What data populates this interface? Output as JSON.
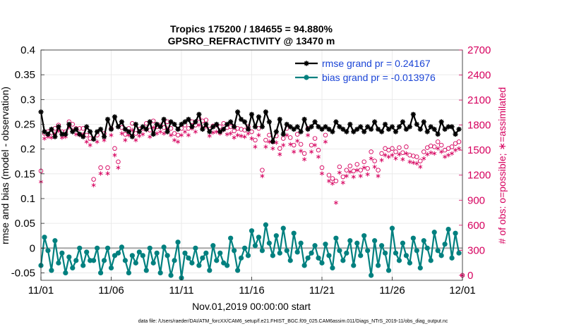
{
  "chart_data": {
    "type": "line",
    "title_line1": "Tropics 175200 / 184655 = 94.880%",
    "title_line2": "GPSRO_REFRACTIVITY @ 13470 m",
    "xlabel": "Nov.01,2019 00:00:00 start",
    "ylabel": "rmse and bias (model - observation)",
    "ylabel_right": "# of obs: o=possible; ∗=assimilated",
    "footnote": "data file: /Users/raeder/DAI/ATM_forcXX/CAM6_setup/f.e21.FHIST_BGC.f09_025.CAM6assim.011/Diags_NTrS_2019-11/obs_diag_output.nc",
    "x_tick_labels": [
      "11/01",
      "11/06",
      "11/11",
      "11/16",
      "11/21",
      "11/26",
      "12/01"
    ],
    "x_ticks": [
      0,
      5,
      10,
      15,
      20,
      25,
      30
    ],
    "xlim": [
      0,
      30
    ],
    "ylim": [
      -0.065,
      0.4
    ],
    "y_ticks": [
      -0.05,
      0,
      0.05,
      0.1,
      0.15,
      0.2,
      0.25,
      0.3,
      0.35,
      0.4
    ],
    "y_tick_labels": [
      "-0.05",
      "0",
      "0.05",
      "0.1",
      "0.15",
      "0.2",
      "0.25",
      "0.3",
      "0.35",
      "0.4"
    ],
    "ylim_right": [
      -60,
      2700
    ],
    "y_ticks_right": [
      0,
      300,
      600,
      900,
      1200,
      1500,
      1800,
      2100,
      2400,
      2700
    ],
    "y_tick_labels_right": [
      "0",
      "300",
      "600",
      "900",
      "1200",
      "1500",
      "1800",
      "2100",
      "2400",
      "2700"
    ],
    "legend": [
      "rmse grand pr = 0.24167",
      "bias grand pr = -0.013976"
    ],
    "legend_location": "top-right",
    "grid": true,
    "series_colors": {
      "rmse": "#000000",
      "bias": "#00807f",
      "obs": "#d6005e",
      "zero_line": "#aaaaaa"
    },
    "x": [
      0.0,
      0.25,
      0.5,
      0.75,
      1.0,
      1.25,
      1.5,
      1.75,
      2.0,
      2.25,
      2.5,
      2.75,
      3.0,
      3.25,
      3.5,
      3.75,
      4.0,
      4.25,
      4.5,
      4.75,
      5.0,
      5.25,
      5.5,
      5.75,
      6.0,
      6.25,
      6.5,
      6.75,
      7.0,
      7.25,
      7.5,
      7.75,
      8.0,
      8.25,
      8.5,
      8.75,
      9.0,
      9.25,
      9.5,
      9.75,
      10.0,
      10.25,
      10.5,
      10.75,
      11.0,
      11.25,
      11.5,
      11.75,
      12.0,
      12.25,
      12.5,
      12.75,
      13.0,
      13.25,
      13.5,
      13.75,
      14.0,
      14.25,
      14.5,
      14.75,
      15.0,
      15.25,
      15.5,
      15.75,
      16.0,
      16.25,
      16.5,
      16.75,
      17.0,
      17.25,
      17.5,
      17.75,
      18.0,
      18.25,
      18.5,
      18.75,
      19.0,
      19.25,
      19.5,
      19.75,
      20.0,
      20.25,
      20.5,
      20.75,
      21.0,
      21.25,
      21.5,
      21.75,
      22.0,
      22.25,
      22.5,
      22.75,
      23.0,
      23.25,
      23.5,
      23.75,
      24.0,
      24.25,
      24.5,
      24.75,
      25.0,
      25.25,
      25.5,
      25.75,
      26.0,
      26.25,
      26.5,
      26.75,
      27.0,
      27.25,
      27.5,
      27.75,
      28.0,
      28.25,
      28.5,
      28.75,
      29.0,
      29.25,
      29.5,
      29.75
    ],
    "series": [
      {
        "name": "rmse",
        "axis": "left",
        "marker": "star",
        "values": [
          0.275,
          0.235,
          0.23,
          0.24,
          0.225,
          0.245,
          0.23,
          0.23,
          0.25,
          0.235,
          0.24,
          0.23,
          0.225,
          0.245,
          0.235,
          0.22,
          0.235,
          0.24,
          0.225,
          0.26,
          0.24,
          0.265,
          0.245,
          0.255,
          0.24,
          0.235,
          0.225,
          0.25,
          0.235,
          0.245,
          0.24,
          0.255,
          0.23,
          0.25,
          0.245,
          0.26,
          0.235,
          0.255,
          0.25,
          0.24,
          0.25,
          0.255,
          0.26,
          0.245,
          0.255,
          0.27,
          0.24,
          0.25,
          0.235,
          0.245,
          0.25,
          0.235,
          0.24,
          0.25,
          0.255,
          0.245,
          0.275,
          0.26,
          0.255,
          0.24,
          0.27,
          0.245,
          0.265,
          0.245,
          0.275,
          0.255,
          0.215,
          0.235,
          0.26,
          0.23,
          0.25,
          0.245,
          0.24,
          0.245,
          0.235,
          0.26,
          0.24,
          0.245,
          0.255,
          0.245,
          0.24,
          0.245,
          0.24,
          0.235,
          0.255,
          0.245,
          0.24,
          0.235,
          0.25,
          0.235,
          0.24,
          0.245,
          0.235,
          0.245,
          0.24,
          0.255,
          0.24,
          0.235,
          0.25,
          0.24,
          0.245,
          0.235,
          0.245,
          0.255,
          0.24,
          0.245,
          0.27,
          0.25,
          0.24,
          0.255,
          0.235,
          0.245,
          0.24,
          0.23,
          0.255,
          0.24,
          0.245,
          0.245,
          0.23,
          0.24
        ]
      },
      {
        "name": "bias",
        "axis": "left",
        "marker": "dot",
        "values": [
          -0.035,
          0.022,
          -0.005,
          -0.045,
          0.015,
          -0.03,
          -0.01,
          -0.05,
          -0.018,
          -0.04,
          -0.025,
          0.0,
          -0.035,
          -0.008,
          -0.025,
          -0.025,
          0.0,
          -0.05,
          -0.025,
          0.0,
          -0.04,
          -0.015,
          -0.01,
          0.002,
          -0.025,
          -0.05,
          -0.015,
          -0.03,
          -0.008,
          -0.015,
          -0.045,
          0.0,
          -0.03,
          -0.01,
          -0.05,
          0.002,
          -0.015,
          -0.055,
          -0.025,
          0.012,
          -0.06,
          -0.01,
          -0.02,
          -0.03,
          0.0,
          -0.035,
          -0.02,
          -0.01,
          -0.045,
          0.005,
          -0.025,
          -0.01,
          -0.03,
          -0.035,
          0.02,
          -0.005,
          -0.045,
          -0.02,
          0.0,
          -0.015,
          0.035,
          0.005,
          0.022,
          -0.005,
          0.047,
          0.01,
          -0.015,
          0.025,
          -0.01,
          0.04,
          -0.005,
          -0.025,
          0.03,
          -0.008,
          0.01,
          -0.035,
          -0.02,
          -0.01,
          0.005,
          -0.02,
          -0.03,
          0.008,
          -0.015,
          -0.04,
          0.02,
          -0.005,
          -0.025,
          -0.01,
          0.015,
          -0.035,
          0.01,
          -0.015,
          0.025,
          -0.005,
          -0.055,
          0.015,
          -0.035,
          0.005,
          -0.01,
          -0.045,
          0.04,
          -0.01,
          -0.025,
          0.01,
          -0.015,
          -0.03,
          0.02,
          -0.005,
          -0.04,
          0.015,
          0.0,
          -0.025,
          0.032,
          -0.005,
          -0.015,
          0.008,
          0.038,
          -0.02,
          0.03,
          -0.01
        ]
      },
      {
        "name": "obs possible",
        "axis": "right",
        "marker": "circle",
        "values": [
          1250,
          1700,
          1720,
          1710,
          1760,
          1800,
          1720,
          1720,
          1840,
          1810,
          1760,
          1760,
          1760,
          1680,
          1640,
          1150,
          1680,
          1290,
          1700,
          1290,
          1760,
          1520,
          1360,
          1770,
          1690,
          1760,
          1820,
          1700,
          1750,
          1760,
          1820,
          1740,
          1850,
          1780,
          1800,
          1770,
          1840,
          1760,
          1700,
          1680,
          1760,
          1800,
          1760,
          1840,
          1800,
          1880,
          1850,
          1860,
          1750,
          1790,
          1800,
          1780,
          1820,
          1770,
          1780,
          1730,
          1760,
          1750,
          1740,
          1780,
          1720,
          1620,
          1760,
          1260,
          1620,
          1680,
          1600,
          1670,
          1520,
          1640,
          1760,
          1650,
          1560,
          1690,
          1570,
          1460,
          1760,
          1560,
          1640,
          1500,
          1290,
          1680,
          1200,
          1160,
          1130,
          1300,
          1180,
          1260,
          1310,
          1250,
          1330,
          1260,
          1360,
          1280,
          1480,
          1370,
          1260,
          1460,
          1520,
          1500,
          1520,
          1480,
          1530,
          1470,
          1540,
          1440,
          1430,
          1420,
          1370,
          1480,
          1530,
          1550,
          1540,
          1600,
          1560,
          1500,
          1520,
          1540,
          1580,
          1600
        ]
      },
      {
        "name": "obs assimilated",
        "axis": "right",
        "marker": "asterisk",
        "values": [
          1120,
          1640,
          1660,
          1650,
          1700,
          1730,
          1650,
          1660,
          1770,
          1740,
          1690,
          1680,
          1690,
          1600,
          1560,
          1080,
          1600,
          1220,
          1620,
          1220,
          1680,
          1440,
          1290,
          1700,
          1620,
          1680,
          1740,
          1620,
          1670,
          1690,
          1740,
          1660,
          1770,
          1700,
          1720,
          1700,
          1760,
          1680,
          1620,
          1600,
          1680,
          1720,
          1680,
          1760,
          1720,
          1800,
          1770,
          1780,
          1670,
          1710,
          1720,
          1700,
          1740,
          1690,
          1700,
          1650,
          1680,
          1670,
          1660,
          1700,
          1640,
          1540,
          1680,
          1190,
          1540,
          1600,
          1520,
          1590,
          1450,
          1560,
          1680,
          1570,
          1480,
          1610,
          1490,
          1390,
          1680,
          1480,
          1560,
          1420,
          1220,
          1600,
          1130,
          1100,
          870,
          1230,
          1110,
          1190,
          1240,
          1180,
          1260,
          1190,
          1290,
          1210,
          1400,
          1300,
          1190,
          1380,
          1440,
          1420,
          1440,
          1400,
          1450,
          1390,
          1460,
          1360,
          1350,
          1340,
          1300,
          1400,
          1450,
          1470,
          1460,
          1520,
          1480,
          1420,
          1440,
          1460,
          1500,
          1520
        ]
      }
    ]
  }
}
